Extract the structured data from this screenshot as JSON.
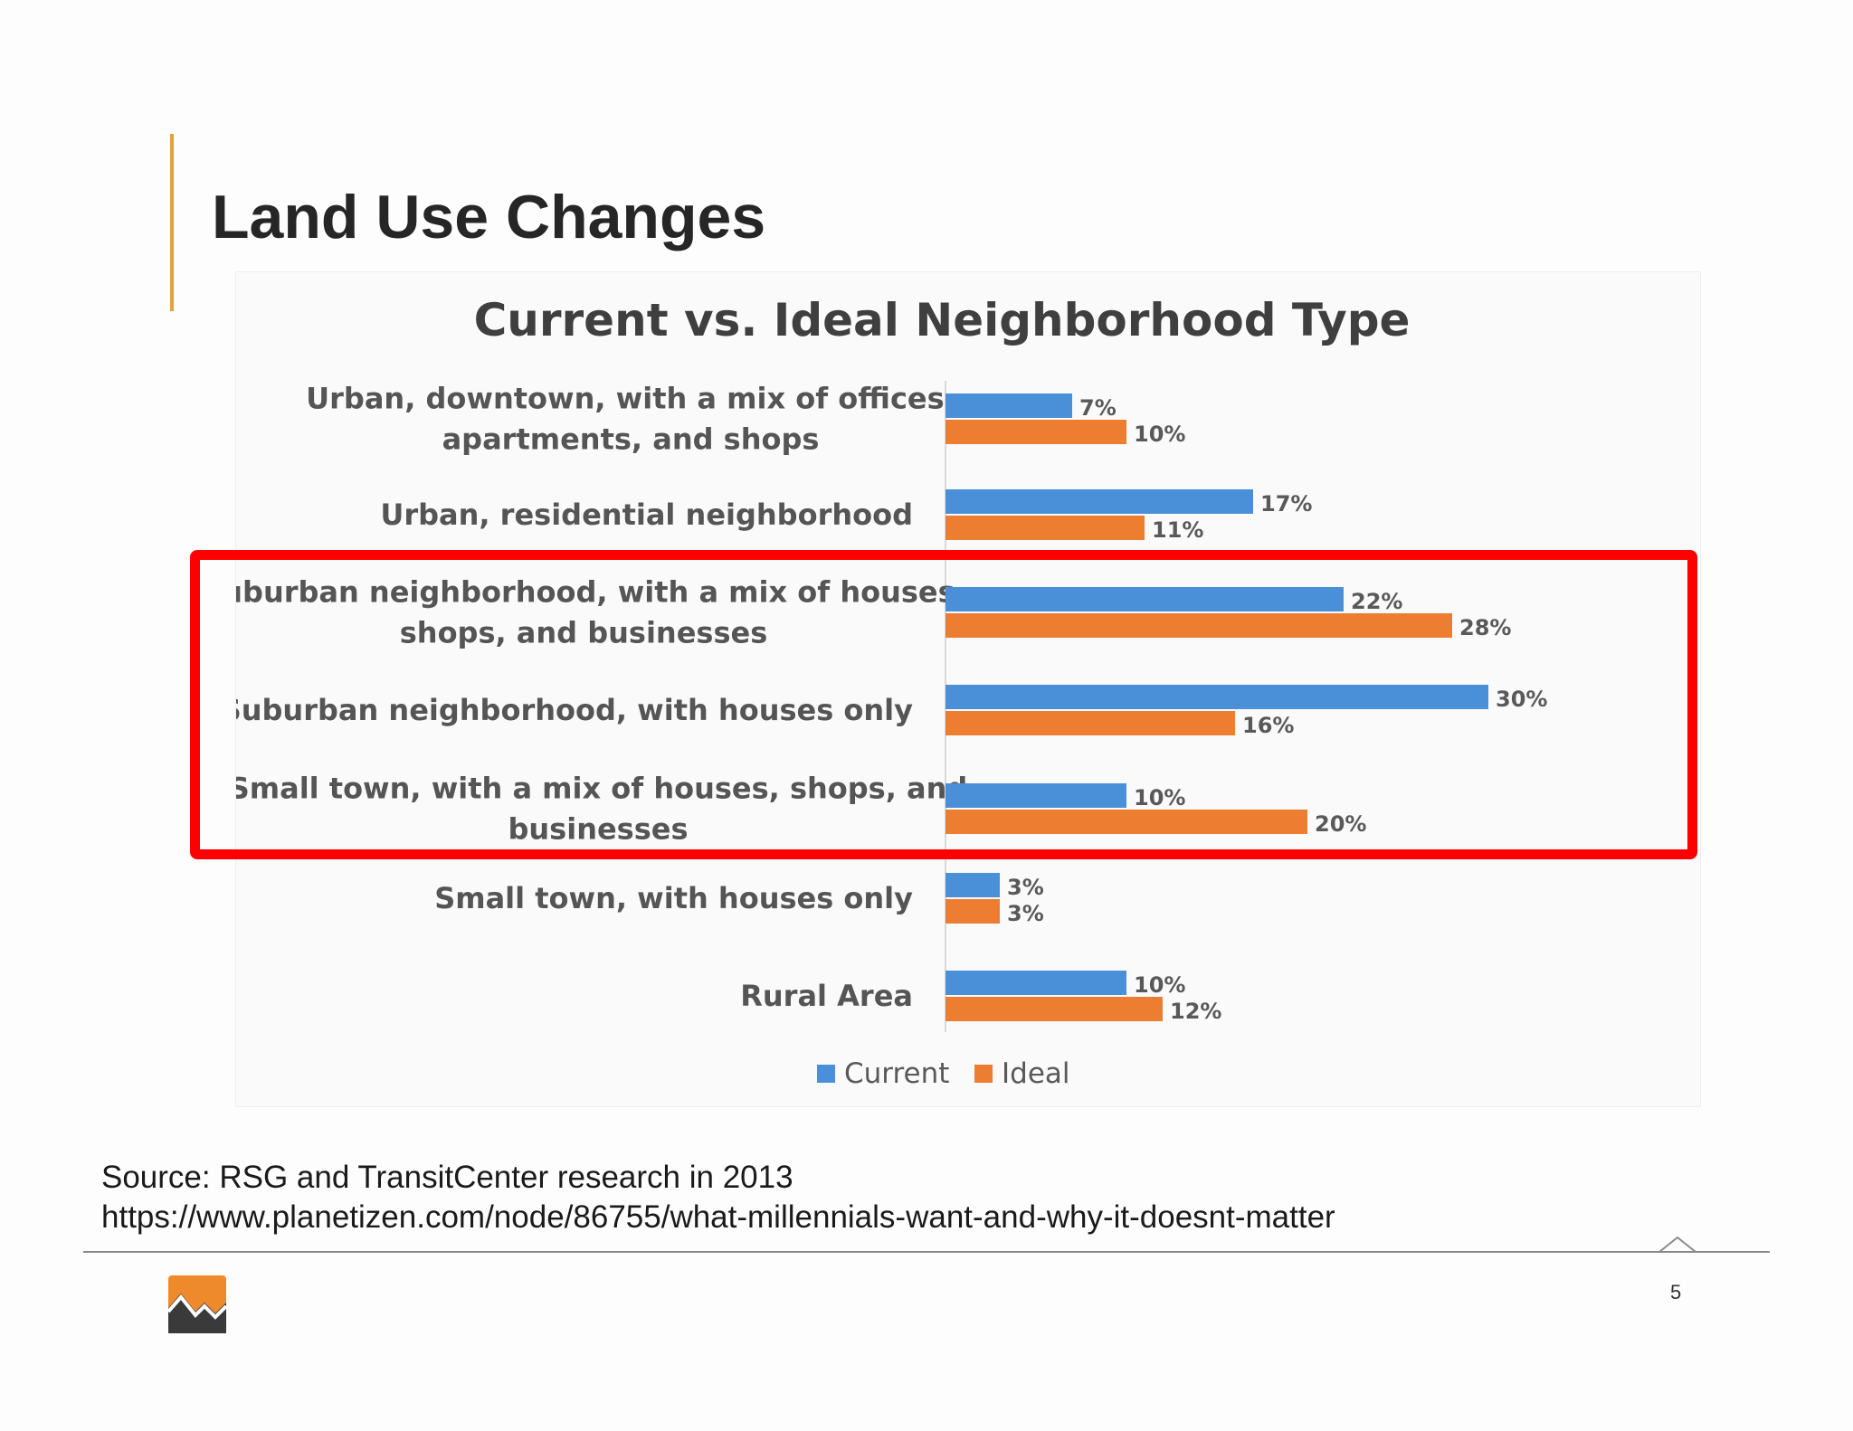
{
  "slide": {
    "title": "Land Use Changes",
    "page_number": "5",
    "source_line1": "Source: RSG and TransitCenter research in 2013",
    "source_line2": "https://www.planetizen.com/node/86755/what-millennials-want-and-why-it-doesnt-matter",
    "accent_color": "#e8a03a",
    "highlight_color": "#ff0000",
    "logo_icon": "mountain-logo-icon"
  },
  "chart_data": {
    "type": "bar",
    "orientation": "horizontal",
    "title": "Current vs. Ideal Neighborhood Type",
    "categories": [
      [
        "Urban, downtown, with a mix of offices,",
        "apartments, and shops"
      ],
      [
        "Urban, residential neighborhood"
      ],
      [
        "Suburban neighborhood, with a mix of houses,",
        "shops, and businesses"
      ],
      [
        "Suburban neighborhood, with houses only"
      ],
      [
        "Small town, with a mix of houses, shops, and",
        "businesses"
      ],
      [
        "Small town, with houses only"
      ],
      [
        "Rural Area"
      ]
    ],
    "series": [
      {
        "name": "Current",
        "color": "#4a90d9",
        "values": [
          7,
          17,
          22,
          30,
          10,
          3,
          10
        ],
        "labels": [
          "7%",
          "17%",
          "22%",
          "30%",
          "10%",
          "3%",
          "10%"
        ]
      },
      {
        "name": "Ideal",
        "color": "#ed7d31",
        "values": [
          10,
          11,
          28,
          16,
          20,
          3,
          12
        ],
        "labels": [
          "10%",
          "11%",
          "28%",
          "16%",
          "20%",
          "3%",
          "12%"
        ]
      }
    ],
    "xlim": [
      0,
      30
    ],
    "grid": false,
    "legend": "bottom",
    "highlighted_categories": [
      2,
      3,
      4
    ]
  }
}
